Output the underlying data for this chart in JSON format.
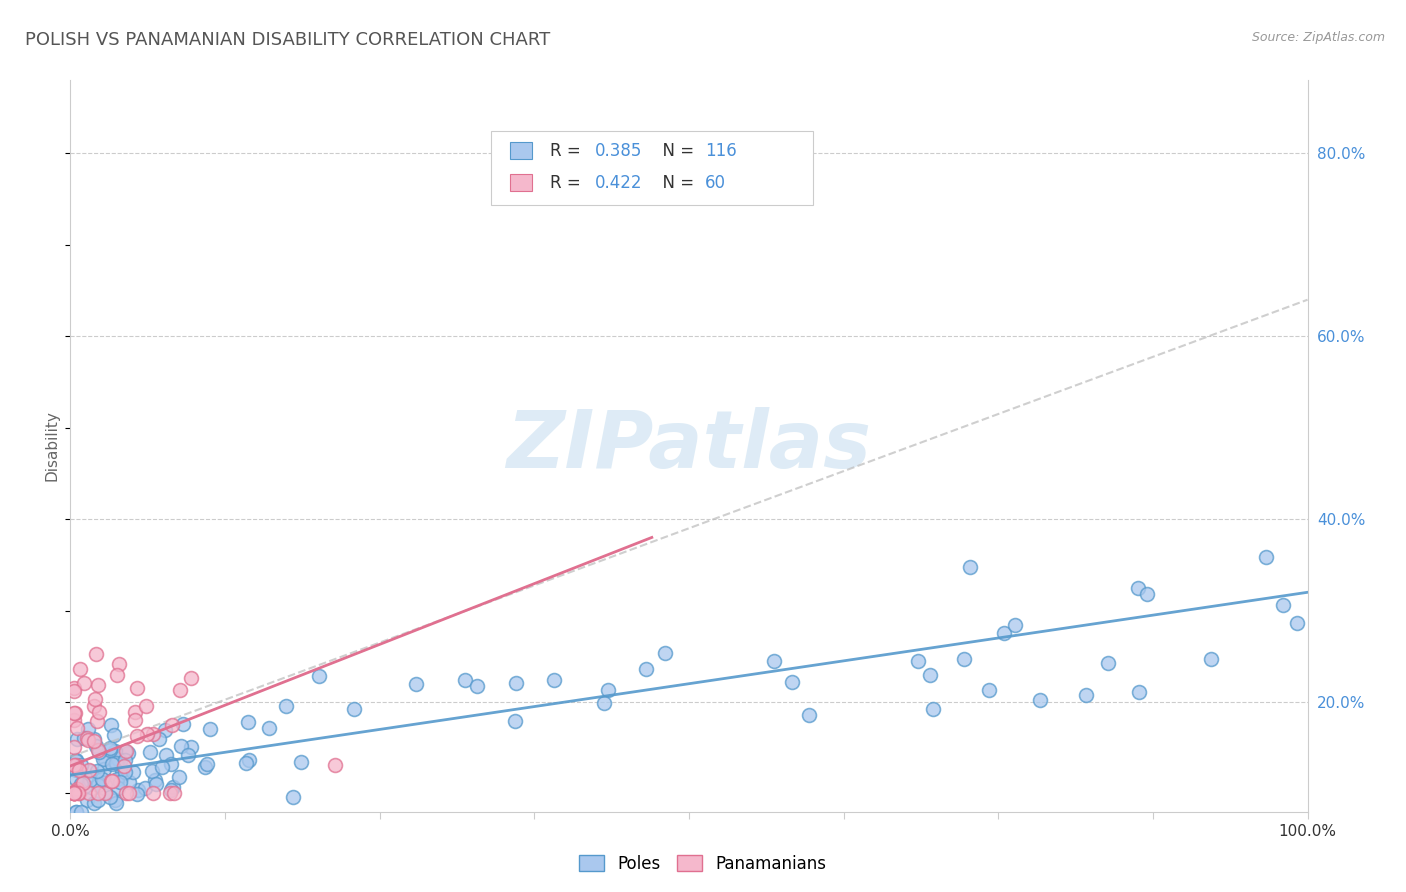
{
  "title": "POLISH VS PANAMANIAN DISABILITY CORRELATION CHART",
  "source": "Source: ZipAtlas.com",
  "ylabel": "Disability",
  "xlim": [
    0.0,
    1.0
  ],
  "ylim": [
    0.08,
    0.88
  ],
  "right_yticks": [
    0.2,
    0.4,
    0.6,
    0.8
  ],
  "right_yticklabels": [
    "20.0%",
    "40.0%",
    "60.0%",
    "80.0%"
  ],
  "poles_color": "#aac8ee",
  "poles_edge_color": "#5599cc",
  "panamanians_color": "#f5b8cc",
  "panamanians_edge_color": "#e07090",
  "axis_color": "#4a90d9",
  "grid_color": "#cccccc",
  "poles_trend_color": "#5599cc",
  "panamanians_trend_color": "#e07090",
  "poles_dashed_trend_color": "#bbbbbb",
  "watermark_color": "#c8dff0",
  "title_color": "#555555",
  "source_color": "#999999"
}
